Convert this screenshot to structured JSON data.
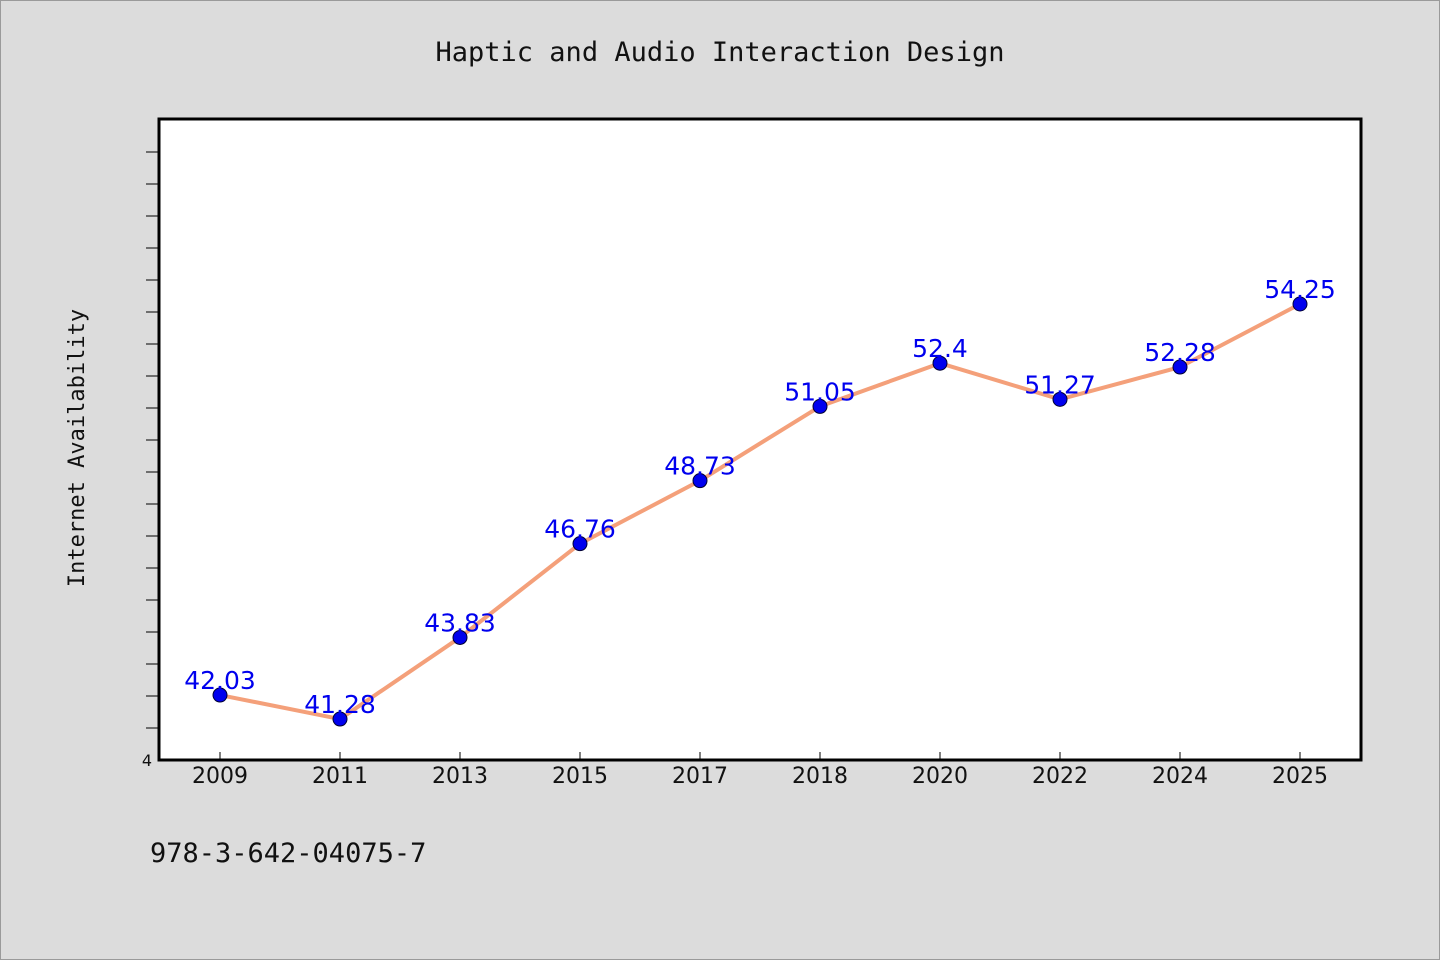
{
  "chart_data": {
    "type": "line",
    "title": "Haptic and Audio Interaction Design",
    "xlabel": "",
    "ylabel": "Internet Availability",
    "categories": [
      "2009",
      "2011",
      "2013",
      "2015",
      "2017",
      "2018",
      "2020",
      "2022",
      "2024",
      "2025"
    ],
    "values": [
      42.03,
      41.28,
      43.83,
      46.76,
      48.73,
      51.05,
      52.4,
      51.27,
      52.28,
      54.25
    ],
    "ylim": [
      40,
      60
    ],
    "y_tick_labels": [
      "4"
    ],
    "grid": false,
    "legend": "none",
    "line_color": "#f4a07a",
    "marker_color": "#0000ee",
    "label_color": "#0000ee"
  },
  "footer_text": "978-3-642-04075-7"
}
